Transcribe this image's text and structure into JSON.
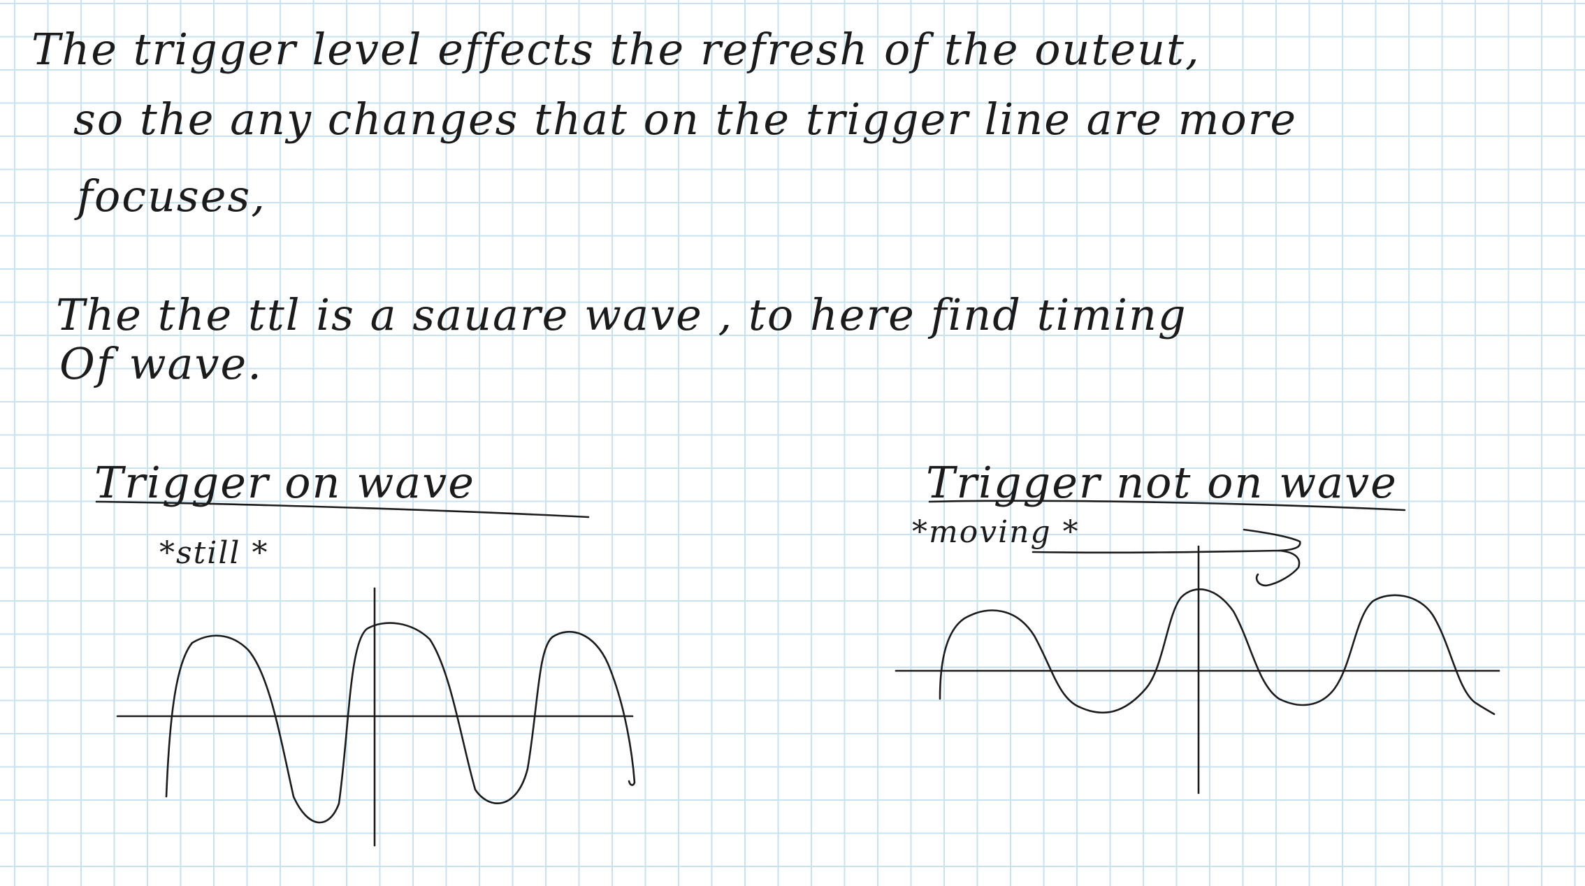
{
  "paragraph1": {
    "line1": "The  trigger  level  effects  the  refresh  of  the  outeut,",
    "line2": "so  the  any  changes  that  on  the  trigger  line   are  more",
    "line3": "focuses,"
  },
  "paragraph2": {
    "line1": "The  the  ttl  is  a  sauare  wave , to  here  find  timing",
    "line2": "Of  wave."
  },
  "left_sketch": {
    "heading": "Trigger   on   wave",
    "note": "*still *"
  },
  "right_sketch": {
    "heading": "Trigger  not  on  wave",
    "note": "*moving *"
  },
  "colors": {
    "paper": "#ffffff",
    "grid": "#c8e2f0",
    "ink": "#1b1b1b"
  }
}
